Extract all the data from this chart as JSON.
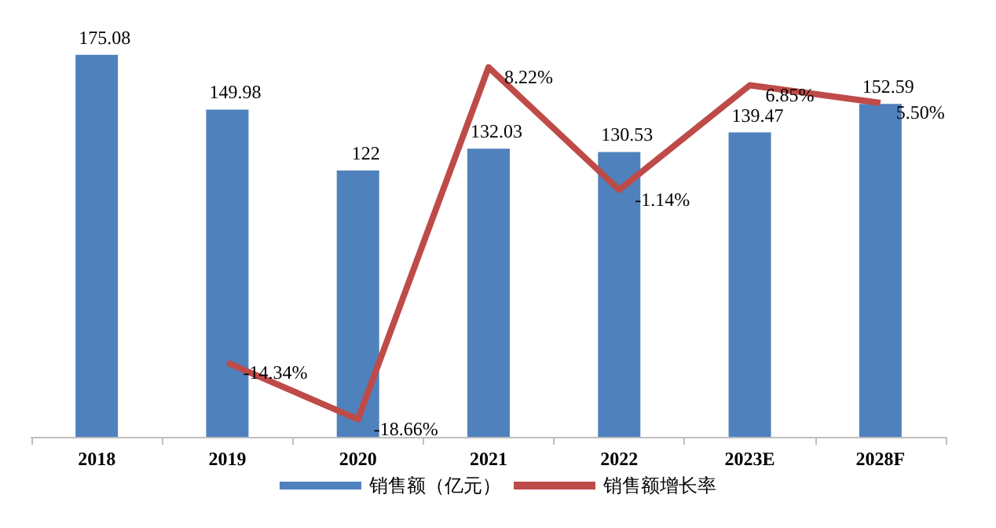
{
  "chart_data": {
    "type": "bar",
    "categories": [
      "2018",
      "2019",
      "2020",
      "2021",
      "2022",
      "2023E",
      "2028F"
    ],
    "series": [
      {
        "name": "销售额（亿元）",
        "color": "#4f81bd",
        "values": [
          175.08,
          149.98,
          122,
          132.03,
          130.53,
          139.47,
          152.59
        ],
        "value_labels": [
          "175.08",
          "149.98",
          "122",
          "132.03",
          "130.53",
          "139.47",
          "152.59"
        ]
      },
      {
        "name": "销售额增长率",
        "type": "line",
        "axis": "y2",
        "color": "#be4b48",
        "values": [
          null,
          -14.34,
          -18.66,
          8.22,
          -1.14,
          6.85,
          5.5
        ],
        "value_labels": [
          null,
          "-14.34%",
          "-18.66%",
          "8.22%",
          "-1.14%",
          "6.85%",
          "5.50%"
        ]
      }
    ],
    "tick_labels": "x",
    "legend": "bottom",
    "grid": false,
    "marker": "none"
  }
}
